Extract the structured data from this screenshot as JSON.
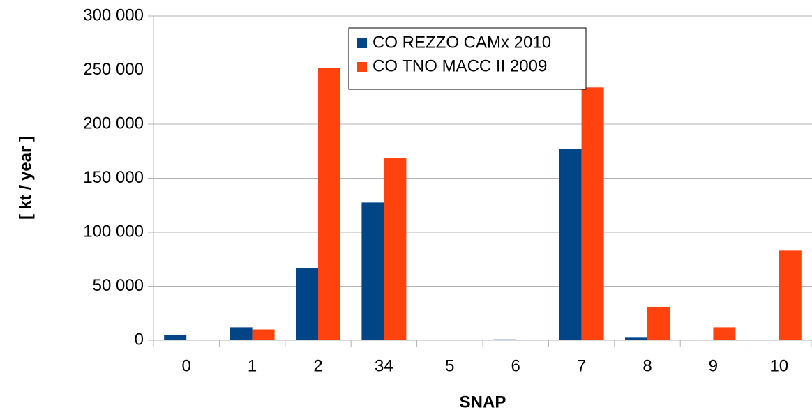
{
  "chart_data": {
    "type": "bar",
    "categories": [
      "0",
      "1",
      "2",
      "34",
      "5",
      "6",
      "7",
      "8",
      "9",
      "10"
    ],
    "series": [
      {
        "name": "CO REZZO CAMx 2010",
        "color": "#004586",
        "values": [
          5000,
          12000,
          67000,
          127500,
          500,
          800,
          177000,
          3000,
          500,
          0
        ]
      },
      {
        "name": "CO TNO MACC II 2009",
        "color": "#ff420e",
        "values": [
          0,
          10000,
          252000,
          169000,
          500,
          0,
          234000,
          31000,
          12000,
          83000
        ]
      }
    ],
    "x_label": "SNAP",
    "y_label": "[ kt / year ]",
    "ylim": [
      0,
      300000
    ],
    "yticks": [
      {
        "value": 0,
        "label": "0"
      },
      {
        "value": 50000,
        "label": "50 000"
      },
      {
        "value": 100000,
        "label": "100 000"
      },
      {
        "value": 150000,
        "label": "150 000"
      },
      {
        "value": 200000,
        "label": "200 000"
      },
      {
        "value": 250000,
        "label": "250 000"
      },
      {
        "value": 300000,
        "label": "300 000"
      }
    ],
    "grid": true
  }
}
